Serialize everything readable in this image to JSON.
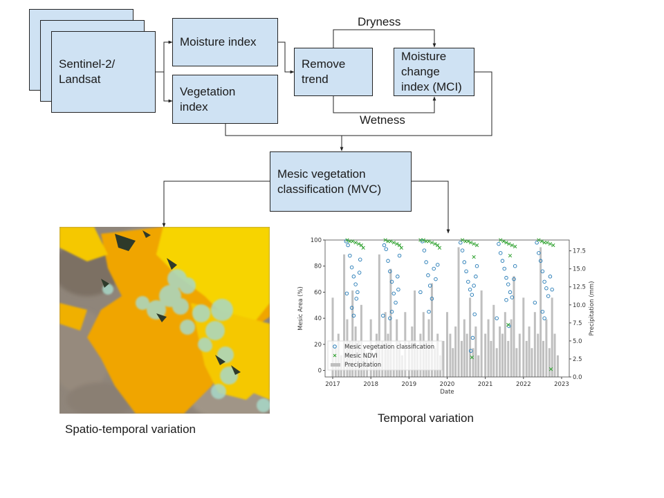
{
  "diagram": {
    "source_label": "Sentinel-2/ Landsat",
    "moisture_index": "Moisture index",
    "vegetation_index": "Vegetation index",
    "remove_trend": "Remove trend",
    "mci": "Moisture change index (MCI)",
    "dryness": "Dryness",
    "wetness": "Wetness",
    "mvc": "Mesic vegetation classification (MVC)",
    "caption_spatial": "Spatio-temporal variation",
    "caption_temporal": "Temporal variation"
  },
  "colors": {
    "box_fill": "#cfe2f3",
    "mvc_marker": "#1f77b4",
    "ndvi_marker": "#2ca02c",
    "precip_bar": "#bfbfbf",
    "map_yellow": "#f5c800",
    "map_orange": "#f0a500",
    "map_cyan": "#a8d8c8"
  },
  "chart_data": {
    "type": "scatter",
    "xlabel": "Date",
    "ylabel": "Mesic Area (%)",
    "y2label": "Precipitation (mm)",
    "x_ticks": [
      "2017",
      "2018",
      "2019",
      "2020",
      "2021",
      "2022",
      "2023"
    ],
    "y_ticks": [
      "0",
      "20",
      "40",
      "60",
      "80",
      "100"
    ],
    "y2_ticks": [
      "0.0",
      "2.5",
      "5.0",
      "7.5",
      "10.0",
      "12.5",
      "15.0",
      "17.5"
    ],
    "xlim": [
      2016.8,
      2023.2
    ],
    "ylim": [
      -5,
      100
    ],
    "y2lim": [
      0,
      19
    ],
    "legend_position": "lower-left",
    "series": [
      {
        "name": "Mesic vegetation classification",
        "marker": "circle",
        "points": [
          [
            2017.35,
            99
          ],
          [
            2017.4,
            96
          ],
          [
            2017.45,
            88
          ],
          [
            2017.5,
            79
          ],
          [
            2017.55,
            72
          ],
          [
            2017.6,
            66
          ],
          [
            2017.65,
            60
          ],
          [
            2017.5,
            48
          ],
          [
            2017.55,
            42
          ],
          [
            2017.62,
            55
          ],
          [
            2017.7,
            75
          ],
          [
            2017.72,
            85
          ],
          [
            2017.37,
            59
          ],
          [
            2018.35,
            96
          ],
          [
            2018.4,
            93
          ],
          [
            2018.45,
            84
          ],
          [
            2018.5,
            76
          ],
          [
            2018.55,
            68
          ],
          [
            2018.6,
            59
          ],
          [
            2018.65,
            52
          ],
          [
            2018.5,
            40
          ],
          [
            2018.55,
            45
          ],
          [
            2018.7,
            72
          ],
          [
            2018.72,
            62
          ],
          [
            2018.75,
            88
          ],
          [
            2018.32,
            42
          ],
          [
            2019.35,
            99
          ],
          [
            2019.4,
            92
          ],
          [
            2019.45,
            83
          ],
          [
            2019.5,
            73
          ],
          [
            2019.55,
            65
          ],
          [
            2019.6,
            55
          ],
          [
            2019.52,
            45
          ],
          [
            2019.65,
            78
          ],
          [
            2019.7,
            70
          ],
          [
            2019.75,
            81
          ],
          [
            2019.3,
            60
          ],
          [
            2020.35,
            98
          ],
          [
            2020.4,
            92
          ],
          [
            2020.45,
            83
          ],
          [
            2020.5,
            76
          ],
          [
            2020.55,
            68
          ],
          [
            2020.6,
            62
          ],
          [
            2020.65,
            58
          ],
          [
            2020.7,
            65
          ],
          [
            2020.75,
            72
          ],
          [
            2020.78,
            80
          ],
          [
            2020.62,
            15
          ],
          [
            2020.67,
            25
          ],
          [
            2020.72,
            43
          ],
          [
            2021.35,
            97
          ],
          [
            2021.4,
            90
          ],
          [
            2021.45,
            84
          ],
          [
            2021.5,
            78
          ],
          [
            2021.55,
            71
          ],
          [
            2021.6,
            66
          ],
          [
            2021.65,
            60
          ],
          [
            2021.62,
            34
          ],
          [
            2021.55,
            54
          ],
          [
            2021.7,
            56
          ],
          [
            2021.75,
            70
          ],
          [
            2021.78,
            80
          ],
          [
            2021.3,
            40
          ],
          [
            2022.35,
            98
          ],
          [
            2022.4,
            90
          ],
          [
            2022.45,
            84
          ],
          [
            2022.5,
            76
          ],
          [
            2022.55,
            68
          ],
          [
            2022.6,
            63
          ],
          [
            2022.65,
            57
          ],
          [
            2022.5,
            45
          ],
          [
            2022.55,
            40
          ],
          [
            2022.7,
            72
          ],
          [
            2022.75,
            62
          ],
          [
            2022.3,
            52
          ]
        ]
      },
      {
        "name": "Mesic NDVI",
        "marker": "x",
        "points": [
          [
            2017.38,
            100
          ],
          [
            2017.45,
            99
          ],
          [
            2017.52,
            99
          ],
          [
            2017.6,
            98
          ],
          [
            2017.68,
            97
          ],
          [
            2017.75,
            96
          ],
          [
            2017.8,
            94
          ],
          [
            2018.38,
            100
          ],
          [
            2018.45,
            99
          ],
          [
            2018.52,
            99
          ],
          [
            2018.6,
            98
          ],
          [
            2018.68,
            97
          ],
          [
            2018.75,
            96
          ],
          [
            2018.8,
            94
          ],
          [
            2019.3,
            100
          ],
          [
            2019.38,
            100
          ],
          [
            2019.45,
            99
          ],
          [
            2019.52,
            99
          ],
          [
            2019.6,
            98
          ],
          [
            2019.68,
            97
          ],
          [
            2019.75,
            96
          ],
          [
            2019.8,
            94
          ],
          [
            2020.4,
            100
          ],
          [
            2020.48,
            99
          ],
          [
            2020.55,
            99
          ],
          [
            2020.62,
            98
          ],
          [
            2020.7,
            97
          ],
          [
            2020.78,
            96
          ],
          [
            2020.65,
            10
          ],
          [
            2020.7,
            87
          ],
          [
            2021.4,
            100
          ],
          [
            2021.48,
            99
          ],
          [
            2021.55,
            98
          ],
          [
            2021.62,
            97
          ],
          [
            2021.7,
            96
          ],
          [
            2021.78,
            95
          ],
          [
            2021.6,
            35
          ],
          [
            2021.65,
            88
          ],
          [
            2022.4,
            100
          ],
          [
            2022.48,
            99
          ],
          [
            2022.55,
            98
          ],
          [
            2022.62,
            98
          ],
          [
            2022.7,
            97
          ],
          [
            2022.78,
            96
          ],
          [
            2022.72,
            1
          ]
        ]
      },
      {
        "name": "Precipitation",
        "marker": "bar",
        "points": [
          [
            2017.0,
            11
          ],
          [
            2017.08,
            4
          ],
          [
            2017.15,
            6
          ],
          [
            2017.22,
            3
          ],
          [
            2017.3,
            17
          ],
          [
            2017.38,
            8
          ],
          [
            2017.45,
            5
          ],
          [
            2017.52,
            12
          ],
          [
            2017.6,
            7
          ],
          [
            2017.68,
            5
          ],
          [
            2017.75,
            10
          ],
          [
            2017.82,
            4
          ],
          [
            2017.9,
            3
          ],
          [
            2018.0,
            8
          ],
          [
            2018.08,
            3
          ],
          [
            2018.15,
            6
          ],
          [
            2018.22,
            17
          ],
          [
            2018.3,
            5
          ],
          [
            2018.38,
            9
          ],
          [
            2018.45,
            6
          ],
          [
            2018.52,
            15
          ],
          [
            2018.6,
            4
          ],
          [
            2018.68,
            8
          ],
          [
            2018.75,
            5
          ],
          [
            2018.82,
            3
          ],
          [
            2018.9,
            9
          ],
          [
            2019.0,
            5
          ],
          [
            2019.08,
            7
          ],
          [
            2019.15,
            12
          ],
          [
            2019.22,
            4
          ],
          [
            2019.3,
            6
          ],
          [
            2019.38,
            9
          ],
          [
            2019.45,
            5
          ],
          [
            2019.52,
            8
          ],
          [
            2019.6,
            13
          ],
          [
            2019.68,
            4
          ],
          [
            2019.75,
            6
          ],
          [
            2019.82,
            3
          ],
          [
            2019.9,
            5
          ],
          [
            2020.0,
            9
          ],
          [
            2020.08,
            6
          ],
          [
            2020.15,
            4
          ],
          [
            2020.22,
            7
          ],
          [
            2020.3,
            18
          ],
          [
            2020.38,
            5
          ],
          [
            2020.45,
            8
          ],
          [
            2020.52,
            6
          ],
          [
            2020.6,
            11
          ],
          [
            2020.68,
            4
          ],
          [
            2020.75,
            7
          ],
          [
            2020.82,
            3
          ],
          [
            2020.9,
            12
          ],
          [
            2021.0,
            6
          ],
          [
            2021.08,
            8
          ],
          [
            2021.15,
            5
          ],
          [
            2021.22,
            10
          ],
          [
            2021.3,
            4
          ],
          [
            2021.38,
            7
          ],
          [
            2021.45,
            6
          ],
          [
            2021.52,
            9
          ],
          [
            2021.6,
            5
          ],
          [
            2021.68,
            8
          ],
          [
            2021.75,
            14
          ],
          [
            2021.82,
            4
          ],
          [
            2021.9,
            6
          ],
          [
            2022.0,
            11
          ],
          [
            2022.08,
            5
          ],
          [
            2022.15,
            7
          ],
          [
            2022.22,
            4
          ],
          [
            2022.3,
            9
          ],
          [
            2022.38,
            6
          ],
          [
            2022.45,
            18
          ],
          [
            2022.52,
            5
          ],
          [
            2022.6,
            8
          ],
          [
            2022.68,
            4
          ],
          [
            2022.75,
            11
          ],
          [
            2022.82,
            6
          ],
          [
            2022.9,
            3
          ]
        ]
      }
    ]
  }
}
